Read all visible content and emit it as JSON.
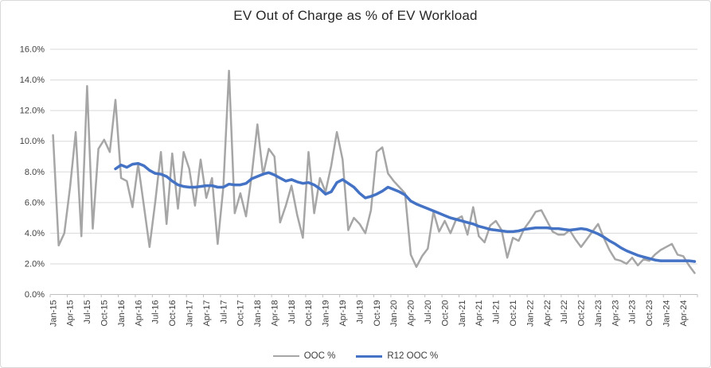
{
  "title": "EV Out of Charge as % of EV Workload",
  "colors": {
    "background": "#ffffff",
    "border": "#d9d9d9",
    "gridline": "#d9d9d9",
    "axis_line": "#bfbfbf",
    "axis_text": "#404040",
    "series_ooc": "#a6a6a6",
    "series_r12": "#4472c4"
  },
  "chart_data": {
    "type": "line",
    "title": "EV Out of Charge as % of EV Workload",
    "xlabel": "",
    "ylabel": "",
    "ylim": [
      0,
      16
    ],
    "y_tick_step": 2,
    "y_tick_suffix": "%",
    "y_tick_decimals": 1,
    "grid": true,
    "legend_position": "bottom",
    "x_label_interval": 3,
    "categories": [
      "Jan-15",
      "Feb-15",
      "Mar-15",
      "Apr-15",
      "May-15",
      "Jun-15",
      "Jul-15",
      "Aug-15",
      "Sep-15",
      "Oct-15",
      "Nov-15",
      "Dec-15",
      "Jan-16",
      "Feb-16",
      "Mar-16",
      "Apr-16",
      "May-16",
      "Jun-16",
      "Jul-16",
      "Aug-16",
      "Sep-16",
      "Oct-16",
      "Nov-16",
      "Dec-16",
      "Jan-17",
      "Feb-17",
      "Mar-17",
      "Apr-17",
      "May-17",
      "Jun-17",
      "Jul-17",
      "Aug-17",
      "Sep-17",
      "Oct-17",
      "Nov-17",
      "Dec-17",
      "Jan-18",
      "Feb-18",
      "Mar-18",
      "Apr-18",
      "May-18",
      "Jun-18",
      "Jul-18",
      "Aug-18",
      "Sep-18",
      "Oct-18",
      "Nov-18",
      "Dec-18",
      "Jan-19",
      "Feb-19",
      "Mar-19",
      "Apr-19",
      "May-19",
      "Jun-19",
      "Jul-19",
      "Aug-19",
      "Sep-19",
      "Oct-19",
      "Nov-19",
      "Dec-19",
      "Jan-20",
      "Feb-20",
      "Mar-20",
      "Apr-20",
      "May-20",
      "Jun-20",
      "Jul-20",
      "Aug-20",
      "Sep-20",
      "Oct-20",
      "Nov-20",
      "Dec-20",
      "Jan-21",
      "Feb-21",
      "Mar-21",
      "Apr-21",
      "May-21",
      "Jun-21",
      "Jul-21",
      "Aug-21",
      "Sep-21",
      "Oct-21",
      "Nov-21",
      "Dec-21",
      "Jan-22",
      "Feb-22",
      "Mar-22",
      "Apr-22",
      "May-22",
      "Jun-22",
      "Jul-22",
      "Aug-22",
      "Sep-22",
      "Oct-22",
      "Nov-22",
      "Dec-22",
      "Jan-23",
      "Feb-23",
      "Mar-23",
      "Apr-23",
      "May-23",
      "Jun-23",
      "Jul-23",
      "Aug-23",
      "Sep-23",
      "Oct-23",
      "Nov-23",
      "Dec-23",
      "Jan-24",
      "Feb-24",
      "Mar-24",
      "Apr-24",
      "May-24",
      "Jun-24"
    ],
    "series": [
      {
        "name": "OOC %",
        "color": "#a6a6a6",
        "stroke_width": 2.5,
        "values": [
          10.4,
          3.2,
          4.0,
          7.0,
          10.6,
          3.8,
          13.6,
          4.3,
          9.5,
          10.1,
          9.3,
          12.7,
          7.6,
          7.4,
          5.7,
          8.5,
          5.8,
          3.1,
          6.0,
          9.3,
          4.6,
          9.2,
          5.6,
          9.3,
          8.2,
          5.8,
          8.8,
          6.3,
          7.6,
          3.3,
          7.0,
          14.6,
          5.3,
          6.6,
          5.1,
          7.8,
          11.1,
          7.8,
          9.5,
          9.0,
          4.7,
          5.8,
          7.1,
          5.2,
          3.7,
          9.3,
          5.3,
          7.6,
          6.7,
          8.4,
          10.6,
          8.8,
          4.2,
          5.0,
          4.6,
          4.0,
          5.5,
          9.3,
          9.6,
          7.9,
          7.4,
          7.0,
          6.6,
          2.6,
          1.8,
          2.5,
          3.0,
          5.4,
          4.1,
          4.8,
          4.0,
          4.9,
          5.1,
          3.9,
          5.7,
          3.8,
          3.4,
          4.5,
          4.8,
          4.2,
          2.4,
          3.7,
          3.5,
          4.3,
          4.8,
          5.4,
          5.5,
          4.8,
          4.1,
          3.9,
          3.9,
          4.2,
          3.6,
          3.1,
          3.6,
          4.1,
          4.6,
          3.7,
          2.9,
          2.3,
          2.2,
          2.0,
          2.4,
          1.9,
          2.3,
          2.2,
          2.6,
          2.9,
          3.1,
          3.3,
          2.6,
          2.5,
          1.9,
          1.4
        ]
      },
      {
        "name": "R12 OOC %",
        "color": "#4472c4",
        "stroke_width": 3.5,
        "values": [
          null,
          null,
          null,
          null,
          null,
          null,
          null,
          null,
          null,
          null,
          null,
          8.2,
          8.45,
          8.3,
          8.5,
          8.55,
          8.4,
          8.1,
          7.9,
          7.85,
          7.7,
          7.4,
          7.15,
          7.05,
          7.0,
          7.0,
          7.05,
          7.1,
          7.1,
          7.0,
          7.0,
          7.2,
          7.15,
          7.15,
          7.25,
          7.55,
          7.7,
          7.85,
          7.95,
          7.8,
          7.6,
          7.4,
          7.5,
          7.35,
          7.25,
          7.3,
          7.15,
          6.9,
          6.55,
          6.7,
          7.3,
          7.5,
          7.25,
          7.0,
          6.6,
          6.3,
          6.4,
          6.55,
          6.75,
          7.0,
          6.85,
          6.7,
          6.5,
          6.1,
          5.9,
          5.75,
          5.6,
          5.45,
          5.3,
          5.15,
          5.0,
          4.9,
          4.8,
          4.7,
          4.6,
          4.45,
          4.35,
          4.25,
          4.2,
          4.15,
          4.1,
          4.1,
          4.15,
          4.25,
          4.3,
          4.35,
          4.35,
          4.35,
          4.3,
          4.3,
          4.25,
          4.2,
          4.25,
          4.3,
          4.25,
          4.1,
          3.95,
          3.75,
          3.5,
          3.3,
          3.05,
          2.85,
          2.7,
          2.55,
          2.45,
          2.35,
          2.25,
          2.2,
          2.2,
          2.2,
          2.2,
          2.2,
          2.2,
          2.15
        ]
      }
    ]
  }
}
